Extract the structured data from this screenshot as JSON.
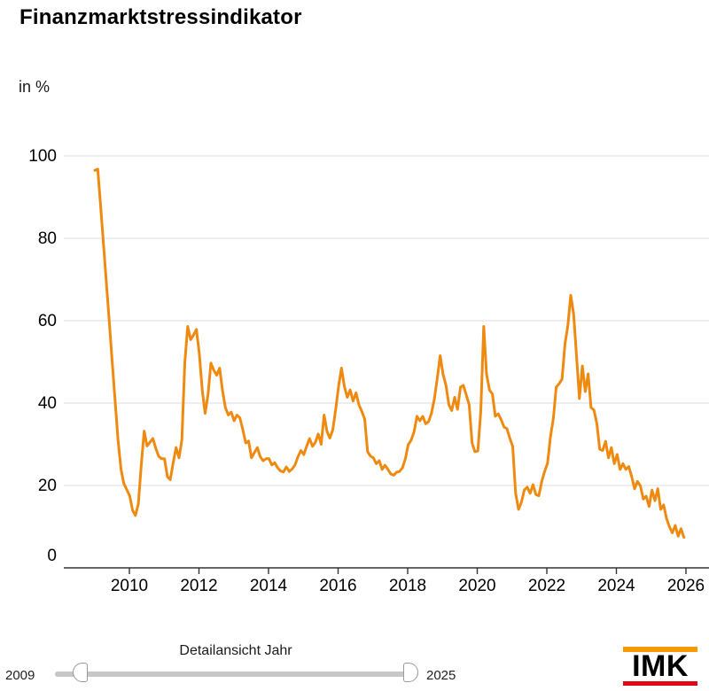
{
  "title": "Finanzmarktstressindikator",
  "unit_label": "in %",
  "slider": {
    "label": "Detailansicht Jahr",
    "min_label": "2009",
    "max_label": "2025"
  },
  "logo": {
    "text": "IMK"
  },
  "colors": {
    "line": "#ef8a10",
    "grid": "#dcdcdc",
    "axis": "#333333",
    "logo_orange": "#f59b00",
    "logo_red": "#e30613",
    "slider_track": "#c7c7c7"
  },
  "chart_data": {
    "type": "line",
    "title": "Finanzmarktstressindikator",
    "ylabel": "in %",
    "ylim": [
      0,
      100
    ],
    "y_ticks": [
      0,
      20,
      40,
      60,
      80,
      100
    ],
    "x_ticks": [
      2010,
      2012,
      2014,
      2016,
      2018,
      2020,
      2022,
      2024,
      2026
    ],
    "grid": true,
    "legend": "none",
    "frequency": "monthly",
    "x_start": "2009-01",
    "x_end": "2025-12",
    "series": [
      {
        "name": "Finanzmarktstressindikator",
        "values": [
          96.5,
          96.8,
          88.0,
          78.5,
          69.0,
          59.5,
          50.0,
          40.5,
          31.0,
          24.0,
          20.5,
          19.0,
          17.5,
          14.0,
          12.7,
          15.5,
          25.0,
          33.2,
          29.6,
          30.5,
          31.4,
          29.0,
          27.1,
          26.5,
          26.5,
          22.1,
          21.4,
          25.5,
          29.2,
          26.7,
          31.0,
          49.7,
          58.6,
          55.4,
          56.5,
          57.9,
          52.0,
          43.2,
          37.5,
          42.0,
          49.7,
          48.0,
          46.8,
          48.5,
          43.0,
          38.9,
          37.1,
          37.8,
          35.7,
          37.1,
          36.4,
          33.5,
          30.3,
          30.8,
          26.7,
          28.0,
          29.2,
          27.0,
          26.0,
          26.5,
          26.5,
          25.0,
          25.5,
          24.3,
          23.5,
          23.3,
          24.5,
          23.4,
          24.0,
          25.0,
          27.0,
          28.5,
          27.5,
          29.5,
          31.4,
          29.5,
          30.5,
          32.5,
          30.0,
          37.1,
          33.1,
          31.5,
          33.5,
          38.5,
          44.0,
          48.5,
          44.0,
          41.4,
          43.2,
          40.5,
          42.5,
          39.6,
          38.0,
          36.1,
          28.2,
          27.1,
          26.7,
          25.3,
          26.0,
          23.9,
          24.9,
          23.9,
          22.8,
          22.5,
          23.2,
          23.4,
          24.3,
          26.5,
          29.9,
          31.0,
          33.0,
          36.8,
          35.7,
          36.8,
          35.0,
          35.5,
          37.5,
          41.0,
          46.0,
          51.5,
          47.0,
          44.3,
          39.6,
          38.2,
          41.4,
          38.5,
          43.9,
          44.3,
          42.0,
          39.6,
          30.3,
          28.2,
          28.4,
          38.0,
          58.6,
          47.0,
          43.2,
          42.2,
          36.8,
          37.4,
          36.0,
          34.2,
          33.8,
          31.5,
          29.5,
          18.1,
          14.2,
          15.9,
          18.9,
          19.6,
          18.1,
          20.2,
          17.8,
          17.5,
          21.0,
          23.4,
          25.4,
          31.8,
          36.3,
          43.9,
          44.7,
          45.8,
          54.4,
          58.7,
          66.2,
          61.5,
          51.5,
          41.1,
          49.0,
          42.8,
          47.1,
          38.9,
          38.3,
          35.0,
          28.8,
          28.5,
          30.7,
          26.7,
          29.2,
          25.3,
          27.5,
          23.9,
          25.3,
          23.9,
          24.6,
          22.1,
          19.2,
          21.0,
          19.9,
          16.7,
          17.4,
          14.9,
          18.9,
          16.3,
          19.2,
          14.2,
          15.3,
          12.0,
          10.0,
          8.5,
          10.3,
          7.7,
          9.5,
          7.4
        ]
      }
    ]
  }
}
